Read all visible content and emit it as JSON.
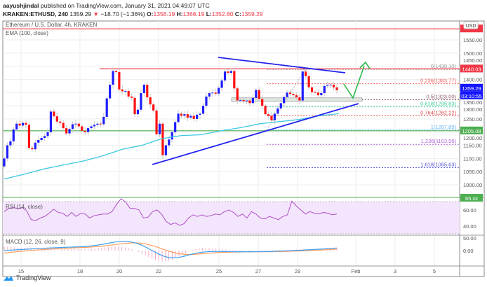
{
  "header": {
    "author": "aayushjindal",
    "published": "published on TradingView.com, January 31, 2021 04:49:07 UTC",
    "symbol": "KRAKEN:ETHUSD, 240",
    "last": "1359.29",
    "change": "−18.70 (−1.36%)",
    "o_label": "O:",
    "o": "1358.19",
    "h_label": "H:",
    "h": "1366.19",
    "l_label": "L:",
    "l": "1352.80",
    "c_label": "C:",
    "c": "1359.29"
  },
  "legend": {
    "title": "Ethereum / U.S. Dollar, 4h, KRAKEN",
    "ema": "EMA (100, close)",
    "rsi": "RSI (14, close)",
    "macd": "MACD (12, 26, close, 9)"
  },
  "colors": {
    "up": "#1e1eff",
    "down": "#ff1010",
    "ema": "#3cc8e0",
    "support": "#4caf50",
    "resistance": "#f23645",
    "trend": "#2323ee",
    "arrow": "#2db84a",
    "rsi": "#b04fc6",
    "macd": "#3d9ef0",
    "signal": "#ff9d5c",
    "hist": "#f8a5c2"
  },
  "price_axis": [
    "1550.00",
    "1500.00",
    "1450.00",
    "1400.00",
    "1350.00",
    "1300.00",
    "1250.00",
    "1200.00",
    "1150.00",
    "1100.00",
    "1050.00",
    "1000.00"
  ],
  "price_labels": {
    "usd": "USD",
    "resistance": "1440.03",
    "last": "1359.29",
    "countdown": "03:10:55",
    "support": "1205.08",
    "rsi_last": "65.xx"
  },
  "rsi_axis": [
    "60.00",
    "40.00"
  ],
  "macd_axis": [
    "50.00",
    "0.00"
  ],
  "time_axis": [
    "15",
    "18",
    "20",
    "22",
    "25",
    "27",
    "29",
    "Feb",
    "3",
    "5"
  ],
  "fib": [
    {
      "label": "0(1438.10)",
      "price": 1438.1,
      "color": "#999999"
    },
    {
      "label": "0.236(1383.77)",
      "price": 1383.77,
      "color": "#f06060"
    },
    {
      "label": "0.5(1323.00)",
      "price": 1323.0,
      "color": "#8a5a6a"
    },
    {
      "label": "0.618(1295.83)",
      "price": 1295.83,
      "color": "#3fcf9a"
    },
    {
      "label": "0.764(1262.22)",
      "price": 1262.22,
      "color": "#e04848"
    },
    {
      "label": "1(1207.89)",
      "price": 1207.89,
      "color": "#64b5f6"
    },
    {
      "label": "1.236(1153.56)",
      "price": 1153.56,
      "color": "#b060d8"
    },
    {
      "label": "1.618(1065.63)",
      "price": 1065.63,
      "color": "#5858d8"
    }
  ],
  "chart_data": {
    "type": "candlestick",
    "title": "Ethereum / U.S. Dollar, 4h, KRAKEN",
    "ylim": [
      960,
      1620
    ],
    "resistance_line": 1440.03,
    "support_line": 1205.08,
    "top_line": 1592,
    "closes": [
      1100,
      1150,
      1165,
      1210,
      1232,
      1225,
      1235,
      1228,
      1140,
      1135,
      1160,
      1170,
      1178,
      1185,
      1200,
      1278,
      1260,
      1240,
      1235,
      1215,
      1195,
      1212,
      1230,
      1232,
      1222,
      1205,
      1200,
      1215,
      1222,
      1228,
      1232,
      1230,
      1258,
      1328,
      1380,
      1432,
      1428,
      1362,
      1355,
      1356,
      1335,
      1330,
      1268,
      1285,
      1348,
      1380,
      1332,
      1305,
      1282,
      1192,
      1232,
      1112,
      1150,
      1172,
      1200,
      1238,
      1270,
      1262,
      1268,
      1255,
      1262,
      1250,
      1266,
      1270,
      1300,
      1335,
      1348,
      1350,
      1346,
      1368,
      1396,
      1430,
      1425,
      1432,
      1366,
      1320,
      1322,
      1318,
      1320,
      1310,
      1330,
      1360,
      1326,
      1300,
      1268,
      1262,
      1245,
      1270,
      1290,
      1310,
      1333,
      1350,
      1345,
      1340,
      1332,
      1320,
      1430,
      1412,
      1370,
      1352,
      1350,
      1340,
      1348,
      1375,
      1378,
      1380,
      1370,
      1359
    ],
    "ema": [
      1022,
      1040,
      1060,
      1075,
      1090,
      1110,
      1135,
      1150,
      1175,
      1187,
      1190,
      1205,
      1217,
      1232,
      1240,
      1248,
      1262,
      1270
    ],
    "rsi": [
      58,
      62,
      63,
      62,
      63,
      59,
      48,
      47,
      50,
      52,
      56,
      61,
      57,
      56,
      52,
      57,
      52,
      56,
      55,
      50,
      53,
      54,
      55,
      55,
      58,
      67,
      74,
      70,
      62,
      62,
      60,
      50,
      51,
      58,
      60,
      55,
      46,
      42,
      44,
      41,
      43,
      50,
      54,
      52,
      54,
      52,
      53,
      55,
      54,
      58,
      60,
      57,
      52,
      55,
      50,
      58,
      55,
      50,
      49,
      52,
      50,
      48,
      52,
      54,
      71,
      65,
      60,
      55,
      58,
      56,
      55,
      57,
      56,
      54,
      55
    ]
  }
}
